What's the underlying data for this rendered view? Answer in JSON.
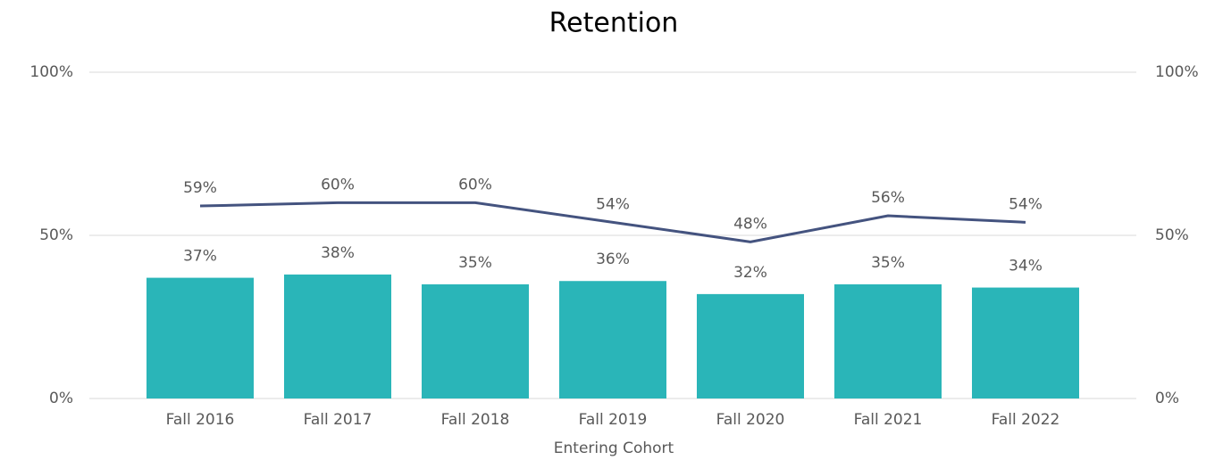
{
  "chart_data": {
    "type": "combo",
    "title": "Retention",
    "x_label": "Entering Cohort",
    "categories": [
      "Fall 2016",
      "Fall 2017",
      "Fall 2018",
      "Fall 2019",
      "Fall 2020",
      "Fall 2021",
      "Fall 2022"
    ],
    "series": [
      {
        "type": "bar",
        "color": "#2ab5b8",
        "values": [
          37,
          38,
          35,
          36,
          32,
          35,
          34
        ],
        "value_labels": [
          "37%",
          "38%",
          "35%",
          "36%",
          "32%",
          "35%",
          "34%"
        ]
      },
      {
        "type": "line",
        "axis": "y2",
        "color": "#44537f",
        "values": [
          59,
          60,
          60,
          54,
          48,
          56,
          54
        ],
        "value_labels": [
          "59%",
          "60%",
          "60%",
          "54%",
          "48%",
          "56%",
          "54%"
        ]
      }
    ],
    "ylim": [
      0,
      100
    ],
    "yticks": [
      {
        "value": 0,
        "label": "0%"
      },
      {
        "value": 50,
        "label": "50%"
      },
      {
        "value": 100,
        "label": "100%"
      }
    ],
    "y2lim": [
      0,
      100
    ],
    "y2ticks": [
      {
        "value": 0,
        "label": "0%"
      },
      {
        "value": 50,
        "label": "50%"
      },
      {
        "value": 100,
        "label": "100%"
      }
    ],
    "grid": true
  }
}
